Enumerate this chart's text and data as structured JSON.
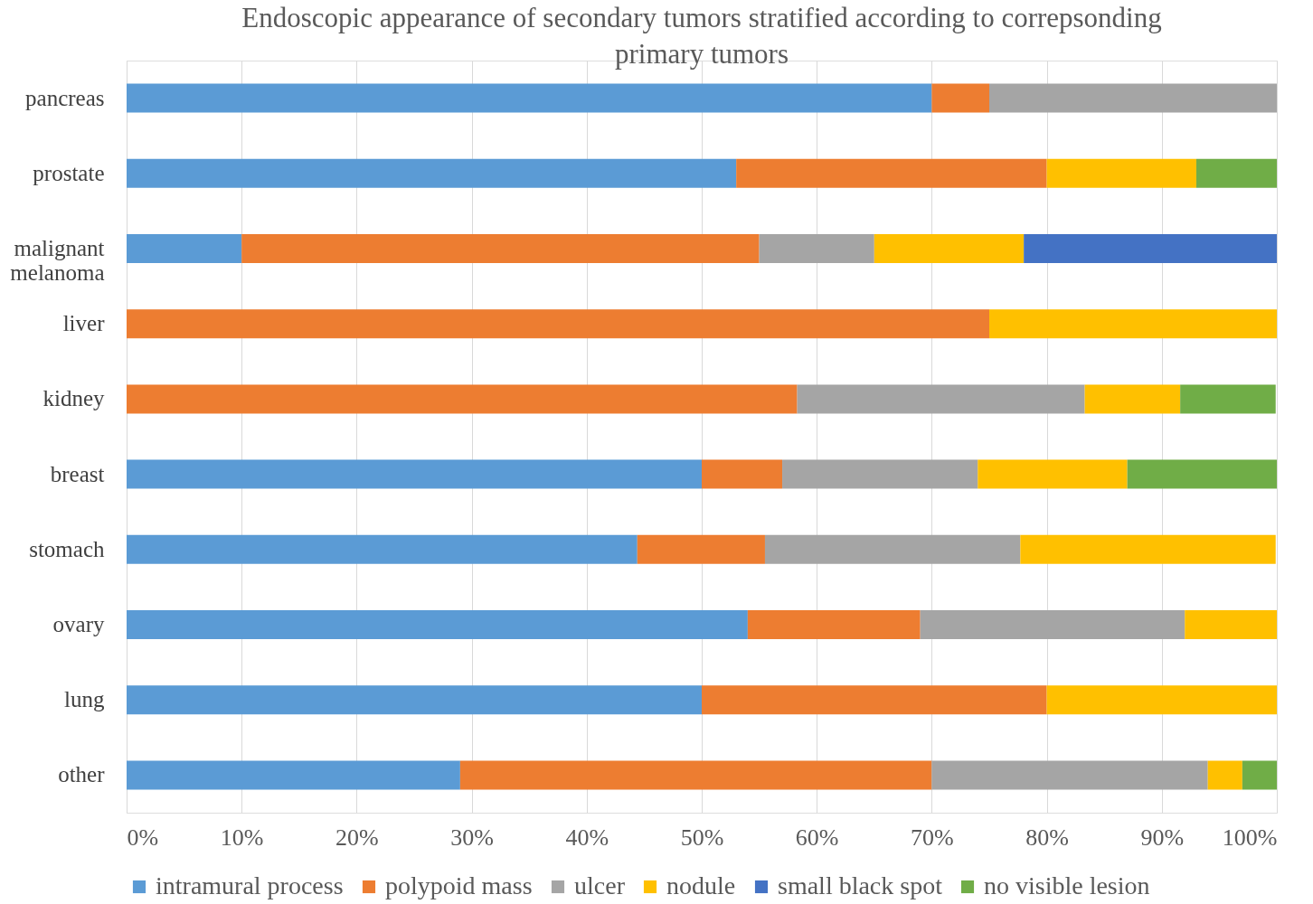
{
  "chart_data": {
    "type": "bar",
    "orientation": "horizontal",
    "stacked": true,
    "title": "Endoscopic appearance of secondary tumors stratified according to correpsonding primary tumors",
    "categories": [
      "pancreas",
      "prostate",
      "malignant melanoma",
      "liver",
      "kidney",
      "breast",
      "stomach",
      "ovary",
      "lung",
      "other"
    ],
    "series": [
      {
        "name": "intramural process",
        "color": "#5b9bd5",
        "values": [
          70,
          53,
          10,
          null,
          null,
          50,
          44.4,
          54,
          50,
          29
        ]
      },
      {
        "name": "polypoid mass",
        "color": "#ed7d31",
        "values": [
          5,
          27,
          45,
          75,
          58.3,
          7,
          11.1,
          15,
          30,
          41
        ]
      },
      {
        "name": "ulcer",
        "color": "#a5a5a5",
        "values": [
          25,
          null,
          10,
          null,
          25,
          17,
          22.2,
          23,
          null,
          24
        ]
      },
      {
        "name": "nodule",
        "color": "#ffc000",
        "values": [
          null,
          13,
          13,
          25,
          8.3,
          13,
          22.2,
          8,
          20,
          3
        ]
      },
      {
        "name": "small black spot",
        "color": "#4472c4",
        "values": [
          null,
          null,
          22,
          null,
          null,
          null,
          null,
          null,
          null,
          null
        ]
      },
      {
        "name": "no visible lesion",
        "color": "#70ad47",
        "values": [
          null,
          7,
          null,
          null,
          8.3,
          13,
          null,
          null,
          null,
          3
        ]
      }
    ],
    "xlim": [
      0,
      100
    ],
    "xticks": [
      {
        "value": 0,
        "label": "0%"
      },
      {
        "value": 10,
        "label": "10%"
      },
      {
        "value": 20,
        "label": "20%"
      },
      {
        "value": 30,
        "label": "30%"
      },
      {
        "value": 40,
        "label": "40%"
      },
      {
        "value": 50,
        "label": "50%"
      },
      {
        "value": 60,
        "label": "60%"
      },
      {
        "value": 70,
        "label": "70%"
      },
      {
        "value": 80,
        "label": "80%"
      },
      {
        "value": 90,
        "label": "90%"
      },
      {
        "value": 100,
        "label": "100%"
      }
    ],
    "grid": "x",
    "legend": "bottom"
  }
}
